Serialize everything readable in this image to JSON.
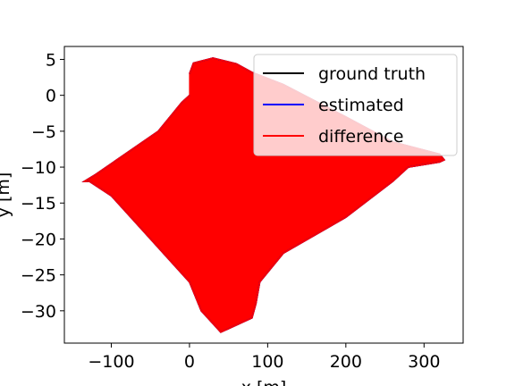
{
  "chart_data": {
    "type": "line",
    "title": "",
    "xlabel": "x [m]",
    "ylabel": "y [m]",
    "xlim": [
      -160,
      350
    ],
    "ylim": [
      -34.5,
      6.8
    ],
    "xticks": [
      -100,
      0,
      100,
      200,
      300
    ],
    "yticks": [
      5,
      0,
      -5,
      -10,
      -15,
      -20,
      -25,
      -30
    ],
    "xtick_labels": [
      "−100",
      "0",
      "100",
      "200",
      "300"
    ],
    "ytick_labels": [
      "5",
      "0",
      "−5",
      "−10",
      "−15",
      "−20",
      "−25",
      "−30"
    ],
    "grid": false,
    "legend_position": "top-right",
    "series": [
      {
        "name": "ground truth",
        "color": "#000000",
        "x": [
          0,
          5,
          30,
          60,
          80,
          120,
          200,
          260,
          320,
          326,
          320,
          280,
          260,
          200,
          120,
          90,
          85,
          80,
          40,
          15,
          0,
          -100,
          -128,
          -135,
          -120,
          -40,
          -10,
          0
        ],
        "y": [
          3,
          4.5,
          5.2,
          4.4,
          3.2,
          1.5,
          -3,
          -6.5,
          -8.2,
          -9,
          -9.3,
          -10,
          -12,
          -17,
          -22,
          -26,
          -29,
          -31,
          -33,
          -30,
          -26,
          -14,
          -12,
          -12,
          -11,
          -5,
          -1,
          0
        ]
      },
      {
        "name": "estimated",
        "color": "#0000ff",
        "x": [
          0,
          5,
          30,
          60,
          80,
          120,
          200,
          260,
          320,
          326,
          320,
          280,
          260,
          200,
          120,
          90,
          85,
          80,
          40,
          15,
          0,
          -100,
          -128,
          -135,
          -120,
          -40,
          -10,
          0
        ],
        "y": [
          3,
          4.5,
          5.2,
          4.4,
          3.2,
          1.5,
          -3,
          -6.5,
          -8.2,
          -9,
          -9.3,
          -10,
          -12,
          -17,
          -22,
          -26,
          -29,
          -31,
          -33,
          -30,
          -26,
          -14,
          -12,
          -12,
          -11,
          -5,
          -1,
          0
        ]
      },
      {
        "name": "difference",
        "color": "#ff0000",
        "x": [
          0,
          5,
          30,
          60,
          80,
          120,
          200,
          260,
          320,
          326,
          320,
          280,
          260,
          200,
          120,
          90,
          85,
          80,
          40,
          15,
          0,
          -100,
          -128,
          -135,
          -120,
          -40,
          -10,
          0
        ],
        "y": [
          3,
          4.5,
          5.2,
          4.4,
          3.2,
          1.5,
          -3,
          -6.5,
          -8.2,
          -9,
          -9.3,
          -10,
          -12,
          -17,
          -22,
          -26,
          -29,
          -31,
          -33,
          -30,
          -26,
          -14,
          -12,
          -12,
          -11,
          -5,
          -1,
          0
        ]
      }
    ]
  }
}
